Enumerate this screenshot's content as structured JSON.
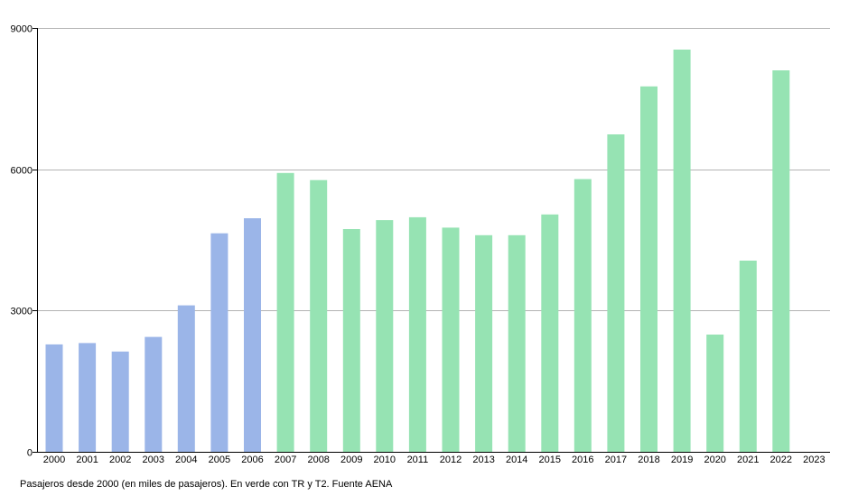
{
  "chart_data": {
    "type": "bar",
    "categories": [
      "2000",
      "2001",
      "2002",
      "2003",
      "2004",
      "2005",
      "2006",
      "2007",
      "2008",
      "2009",
      "2010",
      "2011",
      "2012",
      "2013",
      "2014",
      "2015",
      "2016",
      "2017",
      "2018",
      "2019",
      "2020",
      "2021",
      "2022",
      "2023"
    ],
    "values": [
      2280,
      2310,
      2130,
      2440,
      3110,
      4640,
      4960,
      5920,
      5770,
      4730,
      4920,
      4980,
      4760,
      4600,
      4600,
      5040,
      5790,
      6740,
      7760,
      8540,
      2490,
      4060,
      8100,
      null
    ],
    "series_color_index": [
      0,
      0,
      0,
      0,
      0,
      0,
      0,
      1,
      1,
      1,
      1,
      1,
      1,
      1,
      1,
      1,
      1,
      1,
      1,
      1,
      1,
      1,
      1,
      1
    ],
    "colors": [
      "#9bb5e8",
      "#96e3b3"
    ],
    "ylim": [
      0,
      9000
    ],
    "yticks": [
      0,
      3000,
      6000,
      9000
    ],
    "grid": true,
    "title": "",
    "xlabel": "",
    "ylabel": ""
  },
  "caption": "Pasajeros desde 2000 (en miles de pasajeros). En verde con TR y T2. Fuente AENA"
}
